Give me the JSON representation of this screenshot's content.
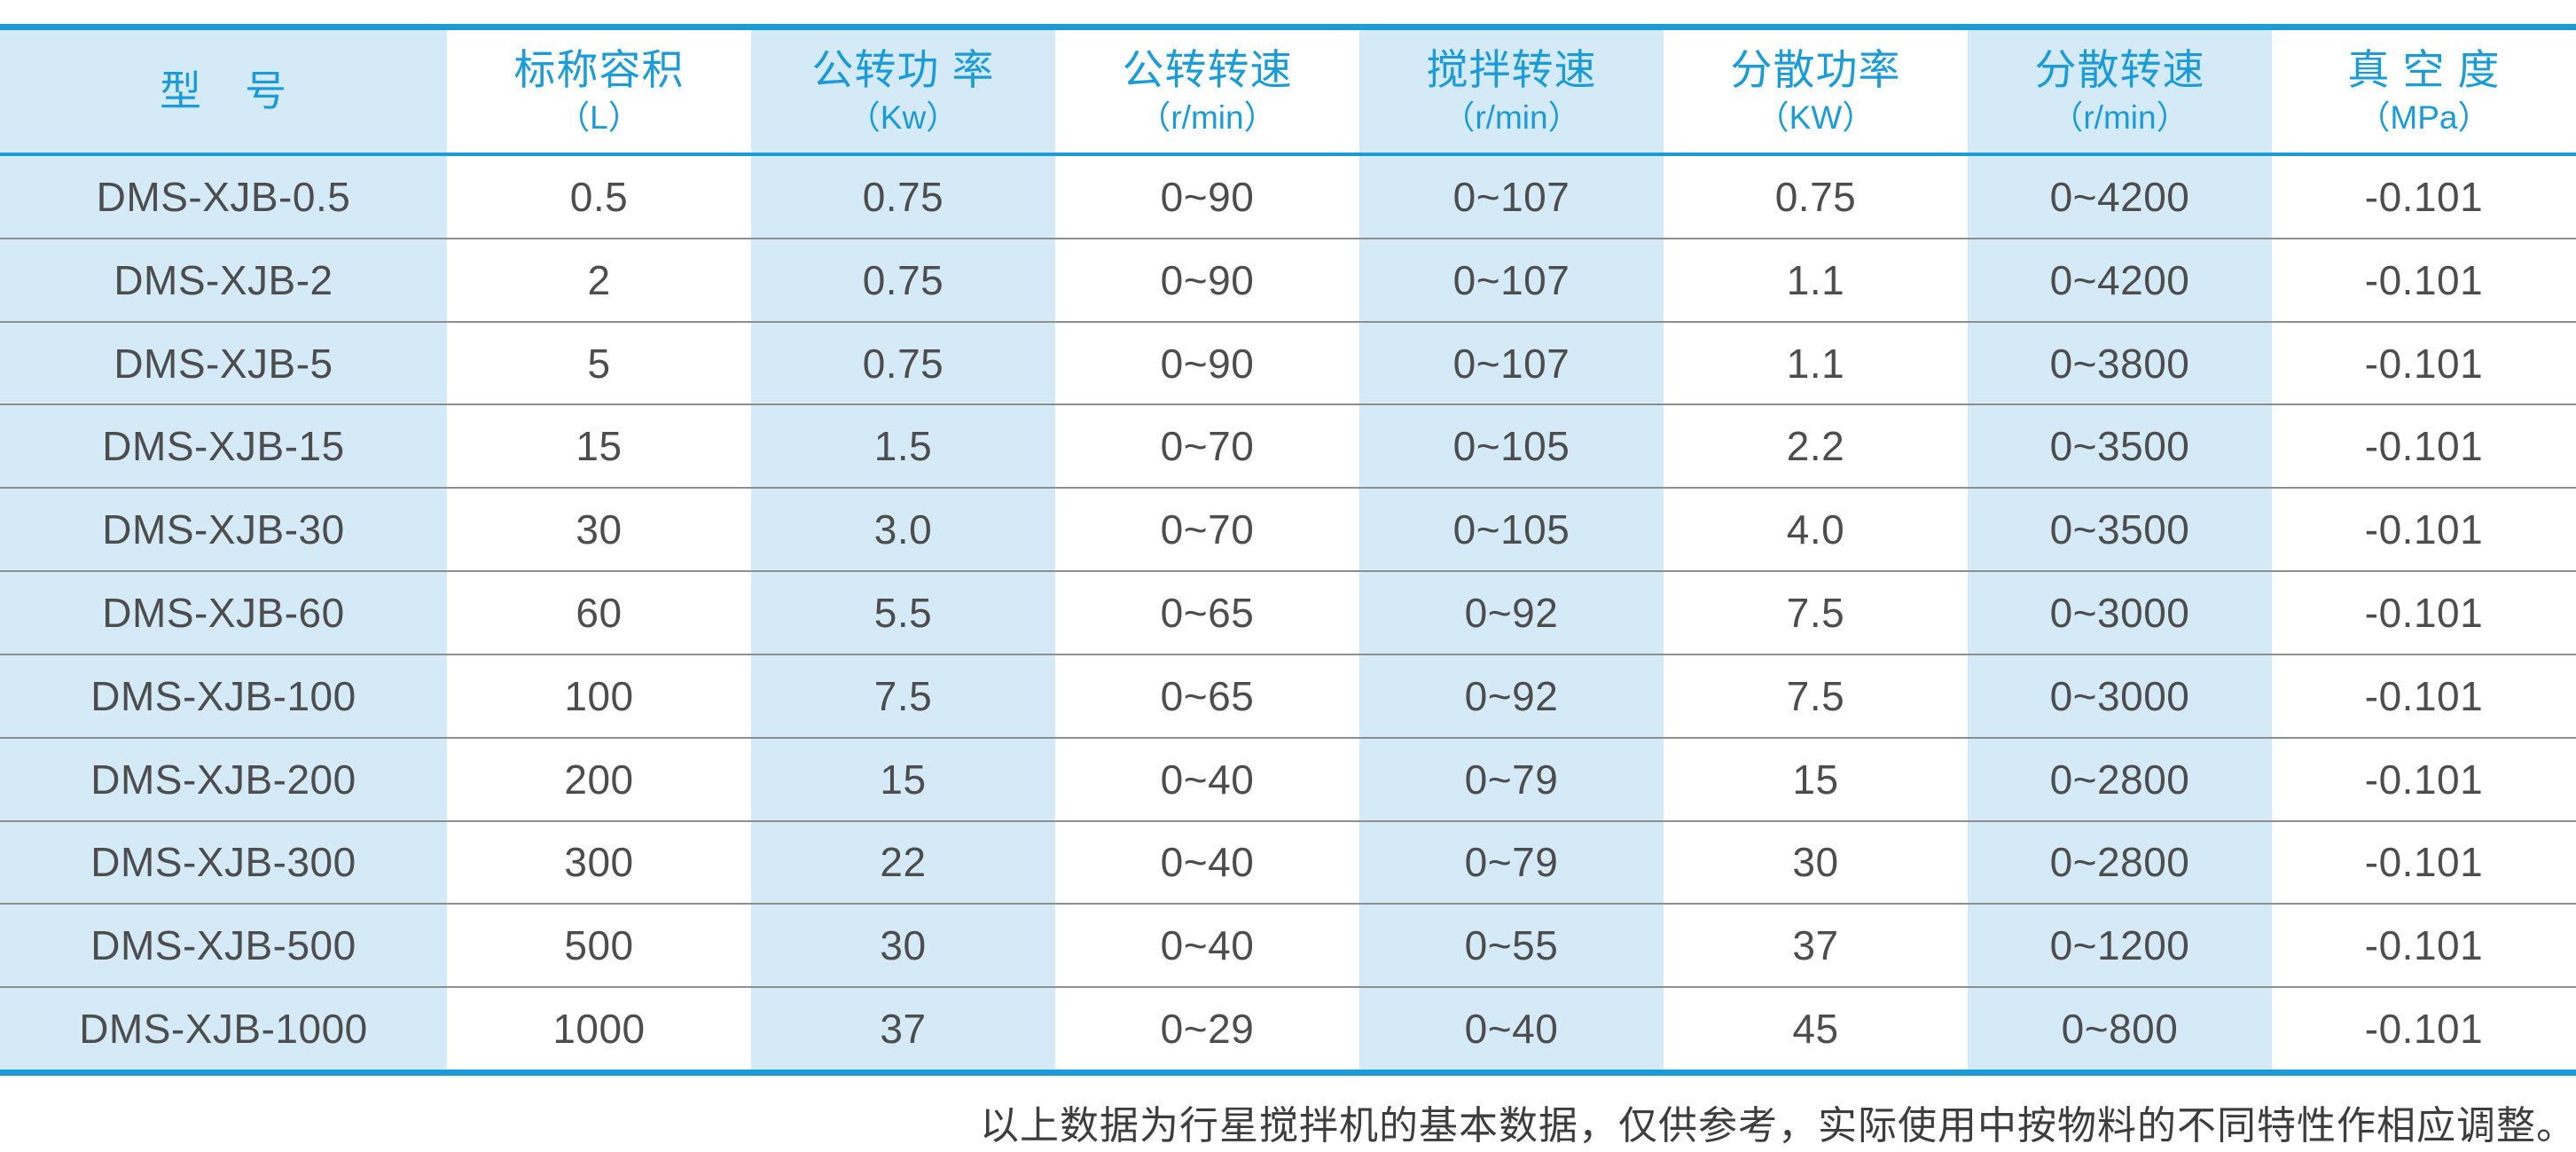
{
  "colors": {
    "accent_blue": "#1b9bd7",
    "column_fill": "#d5eaf7",
    "body_text": "#4d4d4d",
    "separator_gray": "#8f8f8f"
  },
  "table": {
    "columns": [
      {
        "title": "型　号",
        "unit": ""
      },
      {
        "title": "标称容积",
        "unit": "（L）"
      },
      {
        "title": "公转功 率",
        "unit": "（Kw）"
      },
      {
        "title": "公转转速",
        "unit": "（r/min）"
      },
      {
        "title": "搅拌转速",
        "unit": "（r/min）"
      },
      {
        "title": "分散功率",
        "unit": "（KW）"
      },
      {
        "title": "分散转速",
        "unit": "（r/min）"
      },
      {
        "title": "真 空 度",
        "unit": "（MPa）"
      }
    ],
    "rows": [
      [
        "DMS-XJB-0.5",
        "0.5",
        "0.75",
        "0~90",
        "0~107",
        "0.75",
        "0~4200",
        "-0.101"
      ],
      [
        "DMS-XJB-2",
        "2",
        "0.75",
        "0~90",
        "0~107",
        "1.1",
        "0~4200",
        "-0.101"
      ],
      [
        "DMS-XJB-5",
        "5",
        "0.75",
        "0~90",
        "0~107",
        "1.1",
        "0~3800",
        "-0.101"
      ],
      [
        "DMS-XJB-15",
        "15",
        "1.5",
        "0~70",
        "0~105",
        "2.2",
        "0~3500",
        "-0.101"
      ],
      [
        "DMS-XJB-30",
        "30",
        "3.0",
        "0~70",
        "0~105",
        "4.0",
        "0~3500",
        "-0.101"
      ],
      [
        "DMS-XJB-60",
        "60",
        "5.5",
        "0~65",
        "0~92",
        "7.5",
        "0~3000",
        "-0.101"
      ],
      [
        "DMS-XJB-100",
        "100",
        "7.5",
        "0~65",
        "0~92",
        "7.5",
        "0~3000",
        "-0.101"
      ],
      [
        "DMS-XJB-200",
        "200",
        "15",
        "0~40",
        "0~79",
        "15",
        "0~2800",
        "-0.101"
      ],
      [
        "DMS-XJB-300",
        "300",
        "22",
        "0~40",
        "0~79",
        "30",
        "0~2800",
        "-0.101"
      ],
      [
        "DMS-XJB-500",
        "500",
        "30",
        "0~40",
        "0~55",
        "37",
        "0~1200",
        "-0.101"
      ],
      [
        "DMS-XJB-1000",
        "1000",
        "37",
        "0~29",
        "0~40",
        "45",
        "0~800",
        "-0.101"
      ]
    ]
  },
  "footer": {
    "note": "以上数据为行星搅拌机的基本数据，仅供参考，实际使用中按物料的不同特性作相应调整。"
  }
}
